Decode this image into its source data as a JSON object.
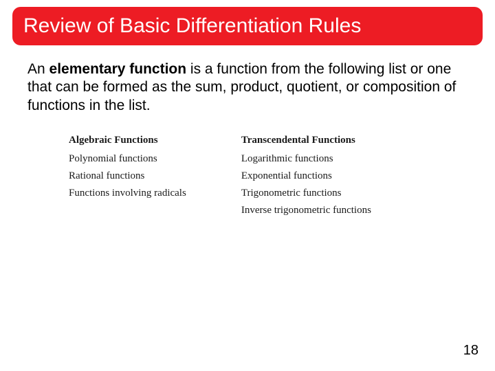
{
  "title": "Review of Basic Differentiation Rules",
  "body": {
    "prefix": "An ",
    "bold": "elementary function",
    "rest": " is a function from the following list or one that can be formed as the sum, product, quotient, or composition of functions in the list."
  },
  "table": {
    "left": {
      "header": "Algebraic Functions",
      "items": [
        "Polynomial functions",
        "Rational functions",
        "Functions involving radicals"
      ]
    },
    "right": {
      "header": "Transcendental Functions",
      "items": [
        "Logarithmic functions",
        "Exponential functions",
        "Trigonometric functions",
        "Inverse trigonometric functions"
      ]
    }
  },
  "page_number": "18",
  "colors": {
    "title_bg": "#ed1c24",
    "title_text": "#ffffff",
    "body_text": "#000000",
    "page_bg": "#ffffff"
  }
}
